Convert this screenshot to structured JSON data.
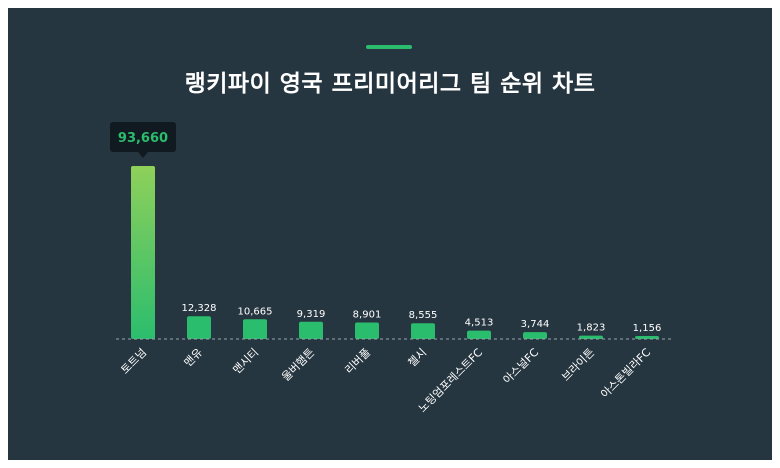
{
  "chart_data": {
    "type": "bar",
    "title": "랭키파이 영국 프리미어리그 팀 순위 차트",
    "categories": [
      "토트넘",
      "맨유",
      "맨시티",
      "울버햄튼",
      "리버풀",
      "첼시",
      "노팅엄포레스트FC",
      "아스널FC",
      "브라이튼",
      "아스톤빌라FC"
    ],
    "values": [
      93660,
      12328,
      10665,
      9319,
      8901,
      8555,
      4513,
      3744,
      1823,
      1156
    ],
    "value_labels": [
      "93,660",
      "12,328",
      "10,665",
      "9,319",
      "8,901",
      "8,555",
      "4,513",
      "3,744",
      "1,823",
      "1,156"
    ],
    "highlight_index": 0,
    "ylim": [
      0,
      93660
    ],
    "grid": false,
    "colors": {
      "background": "#263640",
      "bar": "#2bbd6e",
      "bar_highlight_top": "#8fd05a",
      "tooltip_bg": "#111a20",
      "tooltip_text": "#2bbd6e",
      "accent": "#2bbd6e",
      "baseline": "#9aa5ab"
    }
  }
}
